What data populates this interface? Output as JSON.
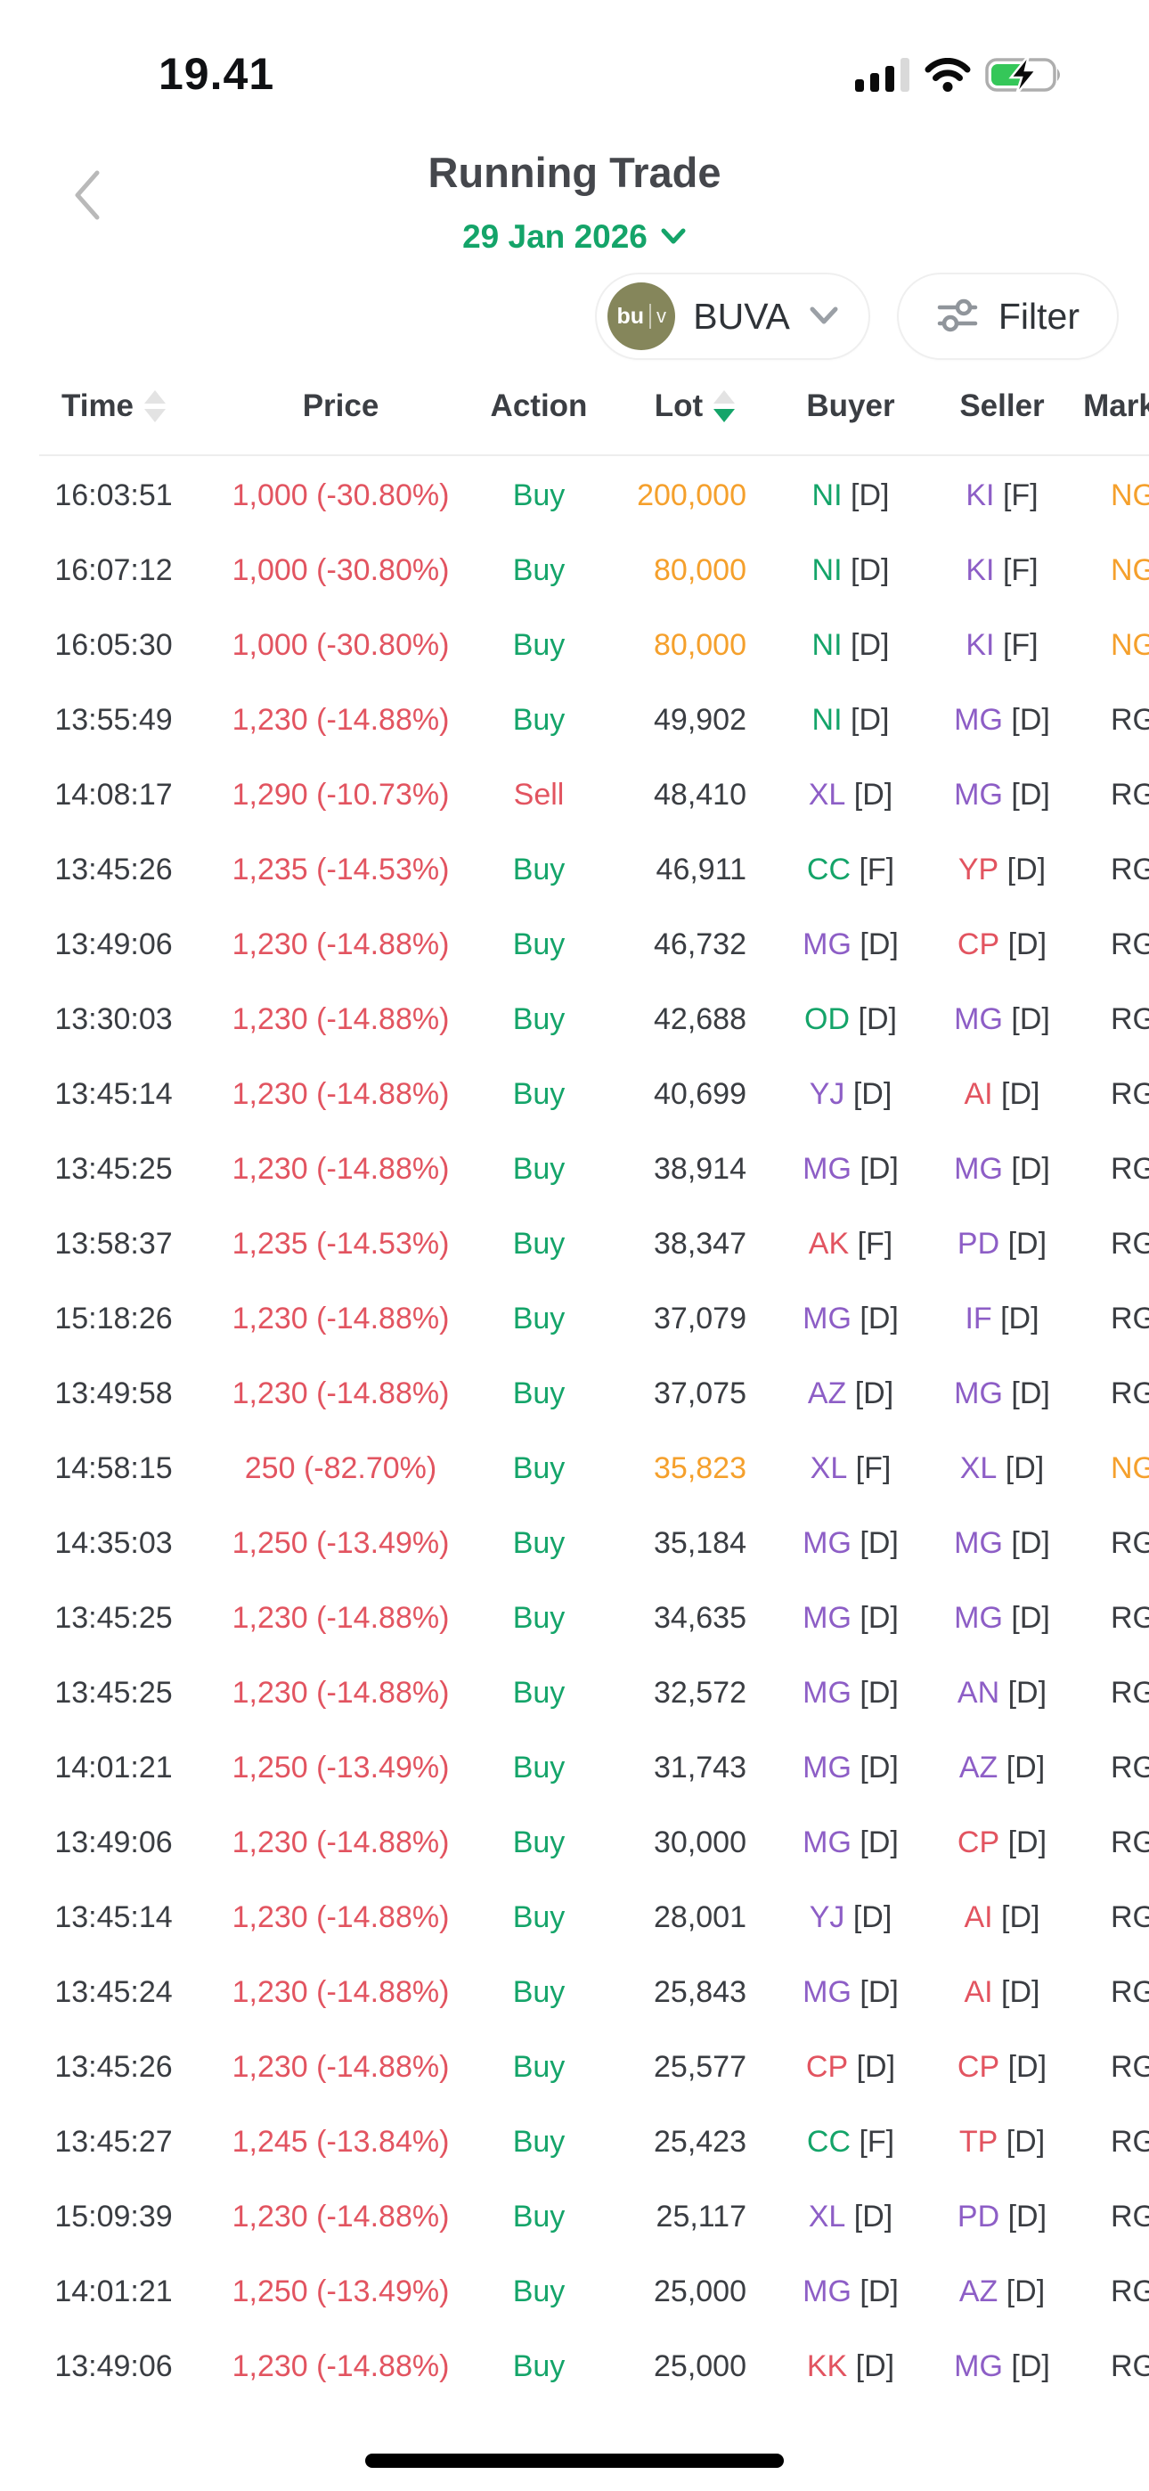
{
  "status_bar": {
    "time": "19.41",
    "icons": [
      "cellular-signal",
      "wifi",
      "battery-charging"
    ]
  },
  "header": {
    "title": "Running Trade",
    "date": "29 Jan 2026"
  },
  "toolbar": {
    "stock_chip": {
      "avatar_primary": "bu",
      "avatar_secondary": "v",
      "label": "BUVA"
    },
    "filter_chip": {
      "label": "Filter"
    }
  },
  "table": {
    "price_color": "red",
    "columns": [
      {
        "label": "Time",
        "sort": "inactive"
      },
      {
        "label": "Price",
        "sort": "none"
      },
      {
        "label": "Action",
        "sort": "none"
      },
      {
        "label": "Lot",
        "sort": "desc"
      },
      {
        "label": "Buyer",
        "sort": "none"
      },
      {
        "label": "Seller",
        "sort": "none"
      },
      {
        "label": "Market",
        "sort": "none"
      }
    ],
    "rows": [
      {
        "time": "16:03:51",
        "price": "1,000 (-30.80%)",
        "action": "Buy",
        "action_color": "green",
        "lot": "200,000",
        "lot_color": "orange",
        "buyer": {
          "code": "NI",
          "color": "green",
          "suffix": "[D]"
        },
        "seller": {
          "code": "KI",
          "color": "purple",
          "suffix": "[F]"
        },
        "market": "NG",
        "market_color": "orange"
      },
      {
        "time": "16:07:12",
        "price": "1,000 (-30.80%)",
        "action": "Buy",
        "action_color": "green",
        "lot": "80,000",
        "lot_color": "orange",
        "buyer": {
          "code": "NI",
          "color": "green",
          "suffix": "[D]"
        },
        "seller": {
          "code": "KI",
          "color": "purple",
          "suffix": "[F]"
        },
        "market": "NG",
        "market_color": "orange"
      },
      {
        "time": "16:05:30",
        "price": "1,000 (-30.80%)",
        "action": "Buy",
        "action_color": "green",
        "lot": "80,000",
        "lot_color": "orange",
        "buyer": {
          "code": "NI",
          "color": "green",
          "suffix": "[D]"
        },
        "seller": {
          "code": "KI",
          "color": "purple",
          "suffix": "[F]"
        },
        "market": "NG",
        "market_color": "orange"
      },
      {
        "time": "13:55:49",
        "price": "1,230 (-14.88%)",
        "action": "Buy",
        "action_color": "green",
        "lot": "49,902",
        "lot_color": "dark",
        "buyer": {
          "code": "NI",
          "color": "green",
          "suffix": "[D]"
        },
        "seller": {
          "code": "MG",
          "color": "purple",
          "suffix": "[D]"
        },
        "market": "RG",
        "market_color": "dark"
      },
      {
        "time": "14:08:17",
        "price": "1,290 (-10.73%)",
        "action": "Sell",
        "action_color": "red",
        "lot": "48,410",
        "lot_color": "dark",
        "buyer": {
          "code": "XL",
          "color": "purple",
          "suffix": "[D]"
        },
        "seller": {
          "code": "MG",
          "color": "purple",
          "suffix": "[D]"
        },
        "market": "RG",
        "market_color": "dark"
      },
      {
        "time": "13:45:26",
        "price": "1,235 (-14.53%)",
        "action": "Buy",
        "action_color": "green",
        "lot": "46,911",
        "lot_color": "dark",
        "buyer": {
          "code": "CC",
          "color": "green",
          "suffix": "[F]"
        },
        "seller": {
          "code": "YP",
          "color": "red",
          "suffix": "[D]"
        },
        "market": "RG",
        "market_color": "dark"
      },
      {
        "time": "13:49:06",
        "price": "1,230 (-14.88%)",
        "action": "Buy",
        "action_color": "green",
        "lot": "46,732",
        "lot_color": "dark",
        "buyer": {
          "code": "MG",
          "color": "purple",
          "suffix": "[D]"
        },
        "seller": {
          "code": "CP",
          "color": "red",
          "suffix": "[D]"
        },
        "market": "RG",
        "market_color": "dark"
      },
      {
        "time": "13:30:03",
        "price": "1,230 (-14.88%)",
        "action": "Buy",
        "action_color": "green",
        "lot": "42,688",
        "lot_color": "dark",
        "buyer": {
          "code": "OD",
          "color": "green",
          "suffix": "[D]"
        },
        "seller": {
          "code": "MG",
          "color": "purple",
          "suffix": "[D]"
        },
        "market": "RG",
        "market_color": "dark"
      },
      {
        "time": "13:45:14",
        "price": "1,230 (-14.88%)",
        "action": "Buy",
        "action_color": "green",
        "lot": "40,699",
        "lot_color": "dark",
        "buyer": {
          "code": "YJ",
          "color": "purple",
          "suffix": "[D]"
        },
        "seller": {
          "code": "AI",
          "color": "red",
          "suffix": "[D]"
        },
        "market": "RG",
        "market_color": "dark"
      },
      {
        "time": "13:45:25",
        "price": "1,230 (-14.88%)",
        "action": "Buy",
        "action_color": "green",
        "lot": "38,914",
        "lot_color": "dark",
        "buyer": {
          "code": "MG",
          "color": "purple",
          "suffix": "[D]"
        },
        "seller": {
          "code": "MG",
          "color": "purple",
          "suffix": "[D]"
        },
        "market": "RG",
        "market_color": "dark"
      },
      {
        "time": "13:58:37",
        "price": "1,235 (-14.53%)",
        "action": "Buy",
        "action_color": "green",
        "lot": "38,347",
        "lot_color": "dark",
        "buyer": {
          "code": "AK",
          "color": "red",
          "suffix": "[F]"
        },
        "seller": {
          "code": "PD",
          "color": "purple",
          "suffix": "[D]"
        },
        "market": "RG",
        "market_color": "dark"
      },
      {
        "time": "15:18:26",
        "price": "1,230 (-14.88%)",
        "action": "Buy",
        "action_color": "green",
        "lot": "37,079",
        "lot_color": "dark",
        "buyer": {
          "code": "MG",
          "color": "purple",
          "suffix": "[D]"
        },
        "seller": {
          "code": "IF",
          "color": "purple",
          "suffix": "[D]"
        },
        "market": "RG",
        "market_color": "dark"
      },
      {
        "time": "13:49:58",
        "price": "1,230 (-14.88%)",
        "action": "Buy",
        "action_color": "green",
        "lot": "37,075",
        "lot_color": "dark",
        "buyer": {
          "code": "AZ",
          "color": "purple",
          "suffix": "[D]"
        },
        "seller": {
          "code": "MG",
          "color": "purple",
          "suffix": "[D]"
        },
        "market": "RG",
        "market_color": "dark"
      },
      {
        "time": "14:58:15",
        "price": "250 (-82.70%)",
        "action": "Buy",
        "action_color": "green",
        "lot": "35,823",
        "lot_color": "orange",
        "buyer": {
          "code": "XL",
          "color": "purple",
          "suffix": "[F]"
        },
        "seller": {
          "code": "XL",
          "color": "purple",
          "suffix": "[D]"
        },
        "market": "NG",
        "market_color": "orange"
      },
      {
        "time": "14:35:03",
        "price": "1,250 (-13.49%)",
        "action": "Buy",
        "action_color": "green",
        "lot": "35,184",
        "lot_color": "dark",
        "buyer": {
          "code": "MG",
          "color": "purple",
          "suffix": "[D]"
        },
        "seller": {
          "code": "MG",
          "color": "purple",
          "suffix": "[D]"
        },
        "market": "RG",
        "market_color": "dark"
      },
      {
        "time": "13:45:25",
        "price": "1,230 (-14.88%)",
        "action": "Buy",
        "action_color": "green",
        "lot": "34,635",
        "lot_color": "dark",
        "buyer": {
          "code": "MG",
          "color": "purple",
          "suffix": "[D]"
        },
        "seller": {
          "code": "MG",
          "color": "purple",
          "suffix": "[D]"
        },
        "market": "RG",
        "market_color": "dark"
      },
      {
        "time": "13:45:25",
        "price": "1,230 (-14.88%)",
        "action": "Buy",
        "action_color": "green",
        "lot": "32,572",
        "lot_color": "dark",
        "buyer": {
          "code": "MG",
          "color": "purple",
          "suffix": "[D]"
        },
        "seller": {
          "code": "AN",
          "color": "purple",
          "suffix": "[D]"
        },
        "market": "RG",
        "market_color": "dark"
      },
      {
        "time": "14:01:21",
        "price": "1,250 (-13.49%)",
        "action": "Buy",
        "action_color": "green",
        "lot": "31,743",
        "lot_color": "dark",
        "buyer": {
          "code": "MG",
          "color": "purple",
          "suffix": "[D]"
        },
        "seller": {
          "code": "AZ",
          "color": "purple",
          "suffix": "[D]"
        },
        "market": "RG",
        "market_color": "dark"
      },
      {
        "time": "13:49:06",
        "price": "1,230 (-14.88%)",
        "action": "Buy",
        "action_color": "green",
        "lot": "30,000",
        "lot_color": "dark",
        "buyer": {
          "code": "MG",
          "color": "purple",
          "suffix": "[D]"
        },
        "seller": {
          "code": "CP",
          "color": "red",
          "suffix": "[D]"
        },
        "market": "RG",
        "market_color": "dark"
      },
      {
        "time": "13:45:14",
        "price": "1,230 (-14.88%)",
        "action": "Buy",
        "action_color": "green",
        "lot": "28,001",
        "lot_color": "dark",
        "buyer": {
          "code": "YJ",
          "color": "purple",
          "suffix": "[D]"
        },
        "seller": {
          "code": "AI",
          "color": "red",
          "suffix": "[D]"
        },
        "market": "RG",
        "market_color": "dark"
      },
      {
        "time": "13:45:24",
        "price": "1,230 (-14.88%)",
        "action": "Buy",
        "action_color": "green",
        "lot": "25,843",
        "lot_color": "dark",
        "buyer": {
          "code": "MG",
          "color": "purple",
          "suffix": "[D]"
        },
        "seller": {
          "code": "AI",
          "color": "red",
          "suffix": "[D]"
        },
        "market": "RG",
        "market_color": "dark"
      },
      {
        "time": "13:45:26",
        "price": "1,230 (-14.88%)",
        "action": "Buy",
        "action_color": "green",
        "lot": "25,577",
        "lot_color": "dark",
        "buyer": {
          "code": "CP",
          "color": "red",
          "suffix": "[D]"
        },
        "seller": {
          "code": "CP",
          "color": "red",
          "suffix": "[D]"
        },
        "market": "RG",
        "market_color": "dark"
      },
      {
        "time": "13:45:27",
        "price": "1,245 (-13.84%)",
        "action": "Buy",
        "action_color": "green",
        "lot": "25,423",
        "lot_color": "dark",
        "buyer": {
          "code": "CC",
          "color": "green",
          "suffix": "[F]"
        },
        "seller": {
          "code": "TP",
          "color": "red",
          "suffix": "[D]"
        },
        "market": "RG",
        "market_color": "dark"
      },
      {
        "time": "15:09:39",
        "price": "1,230 (-14.88%)",
        "action": "Buy",
        "action_color": "green",
        "lot": "25,117",
        "lot_color": "dark",
        "buyer": {
          "code": "XL",
          "color": "purple",
          "suffix": "[D]"
        },
        "seller": {
          "code": "PD",
          "color": "purple",
          "suffix": "[D]"
        },
        "market": "RG",
        "market_color": "dark"
      },
      {
        "time": "14:01:21",
        "price": "1,250 (-13.49%)",
        "action": "Buy",
        "action_color": "green",
        "lot": "25,000",
        "lot_color": "dark",
        "buyer": {
          "code": "MG",
          "color": "purple",
          "suffix": "[D]"
        },
        "seller": {
          "code": "AZ",
          "color": "purple",
          "suffix": "[D]"
        },
        "market": "RG",
        "market_color": "dark"
      },
      {
        "time": "13:49:06",
        "price": "1,230 (-14.88%)",
        "action": "Buy",
        "action_color": "green",
        "lot": "25,000",
        "lot_color": "dark",
        "buyer": {
          "code": "KK",
          "color": "red",
          "suffix": "[D]"
        },
        "seller": {
          "code": "MG",
          "color": "purple",
          "suffix": "[D]"
        },
        "market": "RG",
        "market_color": "dark"
      }
    ]
  },
  "colors": {
    "green": "#14a469",
    "red": "#e25460",
    "purple": "#8d5ec6",
    "orange": "#f5a02c",
    "olive": "#85865b",
    "sort": "#e3e3e3",
    "battery": "#35c759"
  }
}
